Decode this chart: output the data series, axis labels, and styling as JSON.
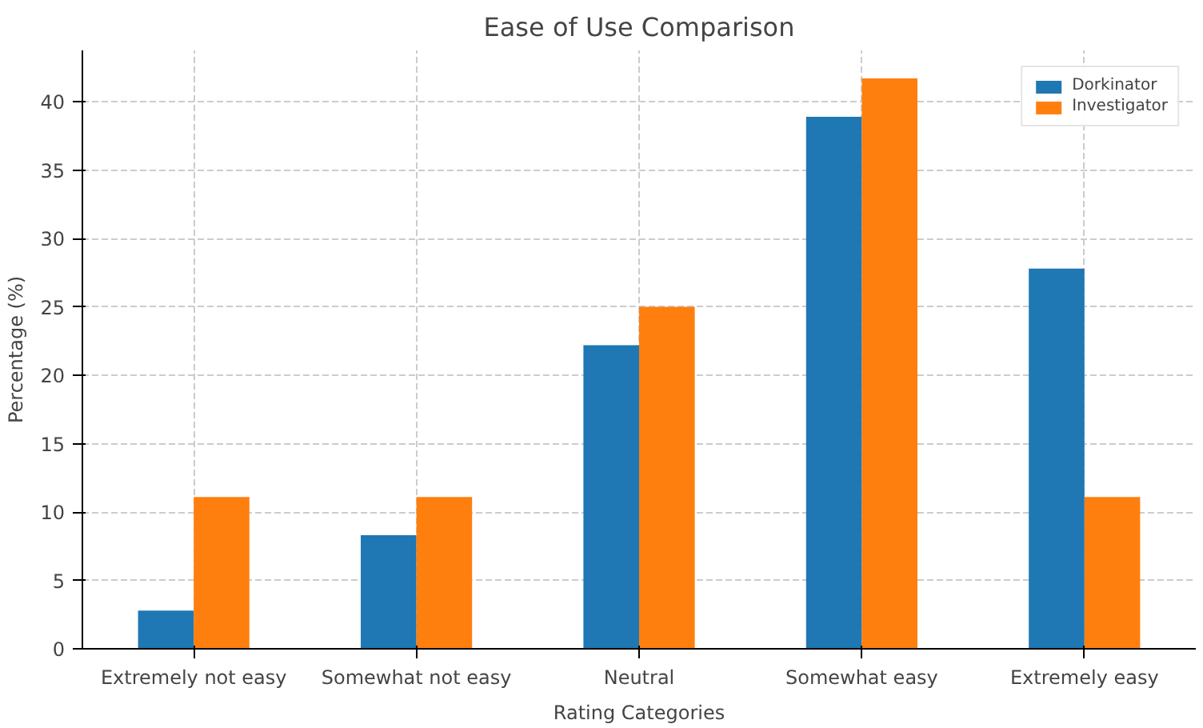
{
  "chart_data": {
    "type": "bar",
    "title": "Ease of Use Comparison",
    "xlabel": "Rating Categories",
    "ylabel": "Percentage (%)",
    "categories": [
      "Extremely not easy",
      "Somewhat not easy",
      "Neutral",
      "Somewhat easy",
      "Extremely easy"
    ],
    "series": [
      {
        "name": "Dorkinator",
        "color": "#1f77b4",
        "values": [
          2.8,
          8.3,
          22.2,
          38.9,
          27.8
        ]
      },
      {
        "name": "Investigator",
        "color": "#ff7f0e",
        "values": [
          11.1,
          11.1,
          25,
          41.7,
          11.1
        ]
      }
    ],
    "ylim": [
      0,
      43.75
    ],
    "yticks": [
      0,
      5,
      10,
      15,
      20,
      25,
      30,
      35,
      40
    ],
    "grid": true,
    "legend": "top right"
  }
}
